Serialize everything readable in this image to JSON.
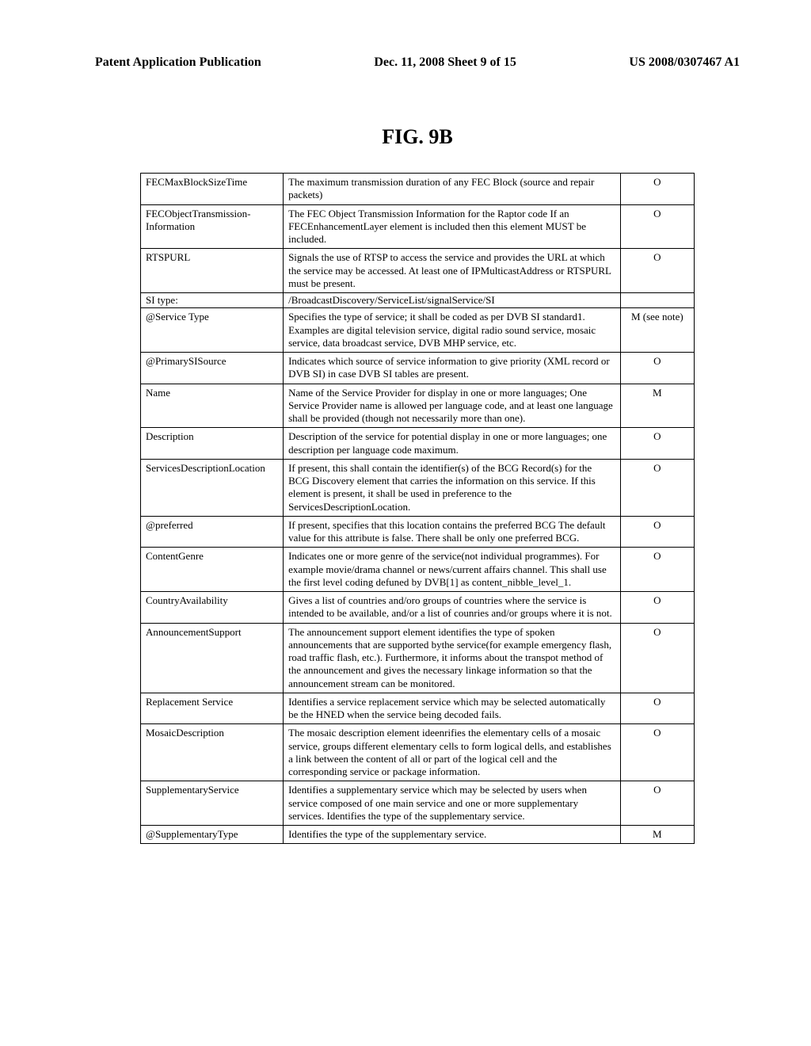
{
  "header": {
    "left": "Patent Application Publication",
    "center": "Dec. 11, 2008  Sheet 9 of 15",
    "right": "US 2008/0307467 A1"
  },
  "figureTitle": "FIG. 9B",
  "rows": [
    {
      "c1": "FECMaxBlockSizeTime",
      "c2": "The maximum transmission duration of any FEC Block (source and repair packets)",
      "c3": "O"
    },
    {
      "c1": "FECObjectTransmission-Information",
      "c2": "The FEC Object Transmission Information for the Raptor code If an FECEnhancementLayer element is included then this element MUST be included.",
      "c3": "O"
    },
    {
      "c1": "RTSPURL",
      "c2": "Signals the use of RTSP to access the service and provides the URL at which the service may be accessed. At least one of IPMulticastAddress or RTSPURL must be present.",
      "c3": "O"
    },
    {
      "c1": "SI type:",
      "c2": "/BroadcastDiscovery/ServiceList/signalService/SI",
      "c3": "",
      "si": true
    },
    {
      "c1": "@Service Type",
      "c2": "Specifies the type of service; it shall be coded as per DVB SI standard1. Examples are digital television service, digital radio sound service, mosaic service, data broadcast service, DVB MHP service, etc.",
      "c3": "M (see note)"
    },
    {
      "c1": "@PrimarySISource",
      "c2": "Indicates which source of service information to give priority (XML record or DVB SI) in case DVB SI tables are present.",
      "c3": "O"
    },
    {
      "c1": "Name",
      "c2": "Name of the Service Provider for display in one or more languages; One Service Provider name is allowed per language code, and at least one language shall be provided (though not necessarily more than one).",
      "c3": "M"
    },
    {
      "c1": "Description",
      "c2": "Description of the service for potential display in one or more languages; one description per language code maximum.",
      "c3": "O"
    },
    {
      "c1": "ServicesDescriptionLocation",
      "c2": "If present, this shall contain the identifier(s) of the BCG Record(s) for the BCG Discovery element that carries the information on this service. If this element is present, it shall be used in preference to the ServicesDescriptionLocation.",
      "c3": "O"
    },
    {
      "c1": "@preferred",
      "c2": "If present, specifies that this location contains the preferred BCG The default value for this attribute is false. There shall be only one preferred BCG.",
      "c3": "O"
    },
    {
      "c1": "ContentGenre",
      "c2": "Indicates one or more genre of the service(not individual programmes). For example movie/drama channel or news/current affairs channel. This shall use the first level coding defuned by DVB[1] as content_nibble_level_1.",
      "c3": "O"
    },
    {
      "c1": "CountryAvailability",
      "c2": "Gives a list of countries and/oro groups of countries where the service is intended to be available, and/or a list of counries and/or groups where it is not.",
      "c3": "O"
    },
    {
      "c1": "AnnouncementSupport",
      "c2": "The announcement support element identifies the type of spoken announcements that are supported bythe service(for example emergency flash, road traffic flash, etc.). Furthermore, it informs about the transpot method of the announcement and gives the necessary linkage information so that the announcement stream can be monitored.",
      "c3": "O"
    },
    {
      "c1": "Replacement Service",
      "c2": "Identifies a service replacement service which may be selected automatically be the HNED when the service being decoded fails.",
      "c3": "O"
    },
    {
      "c1": "MosaicDescription",
      "c2": "The mosaic description element ideenrifies the elementary cells of a mosaic service, groups different elementary cells to form logical dells, and establishes a link between the content of all or part of the logical cell and the corresponding service or package information.",
      "c3": "O"
    },
    {
      "c1": "SupplementaryService",
      "c2": "Identifies a supplementary service which may be selected by users when service composed of one main service and one or more supplementary services. Identifies the type of the supplementary service.",
      "c3": "O"
    },
    {
      "c1": "@SupplementaryType",
      "c2": "Identifies the type of the supplementary service.",
      "c3": "M"
    }
  ]
}
